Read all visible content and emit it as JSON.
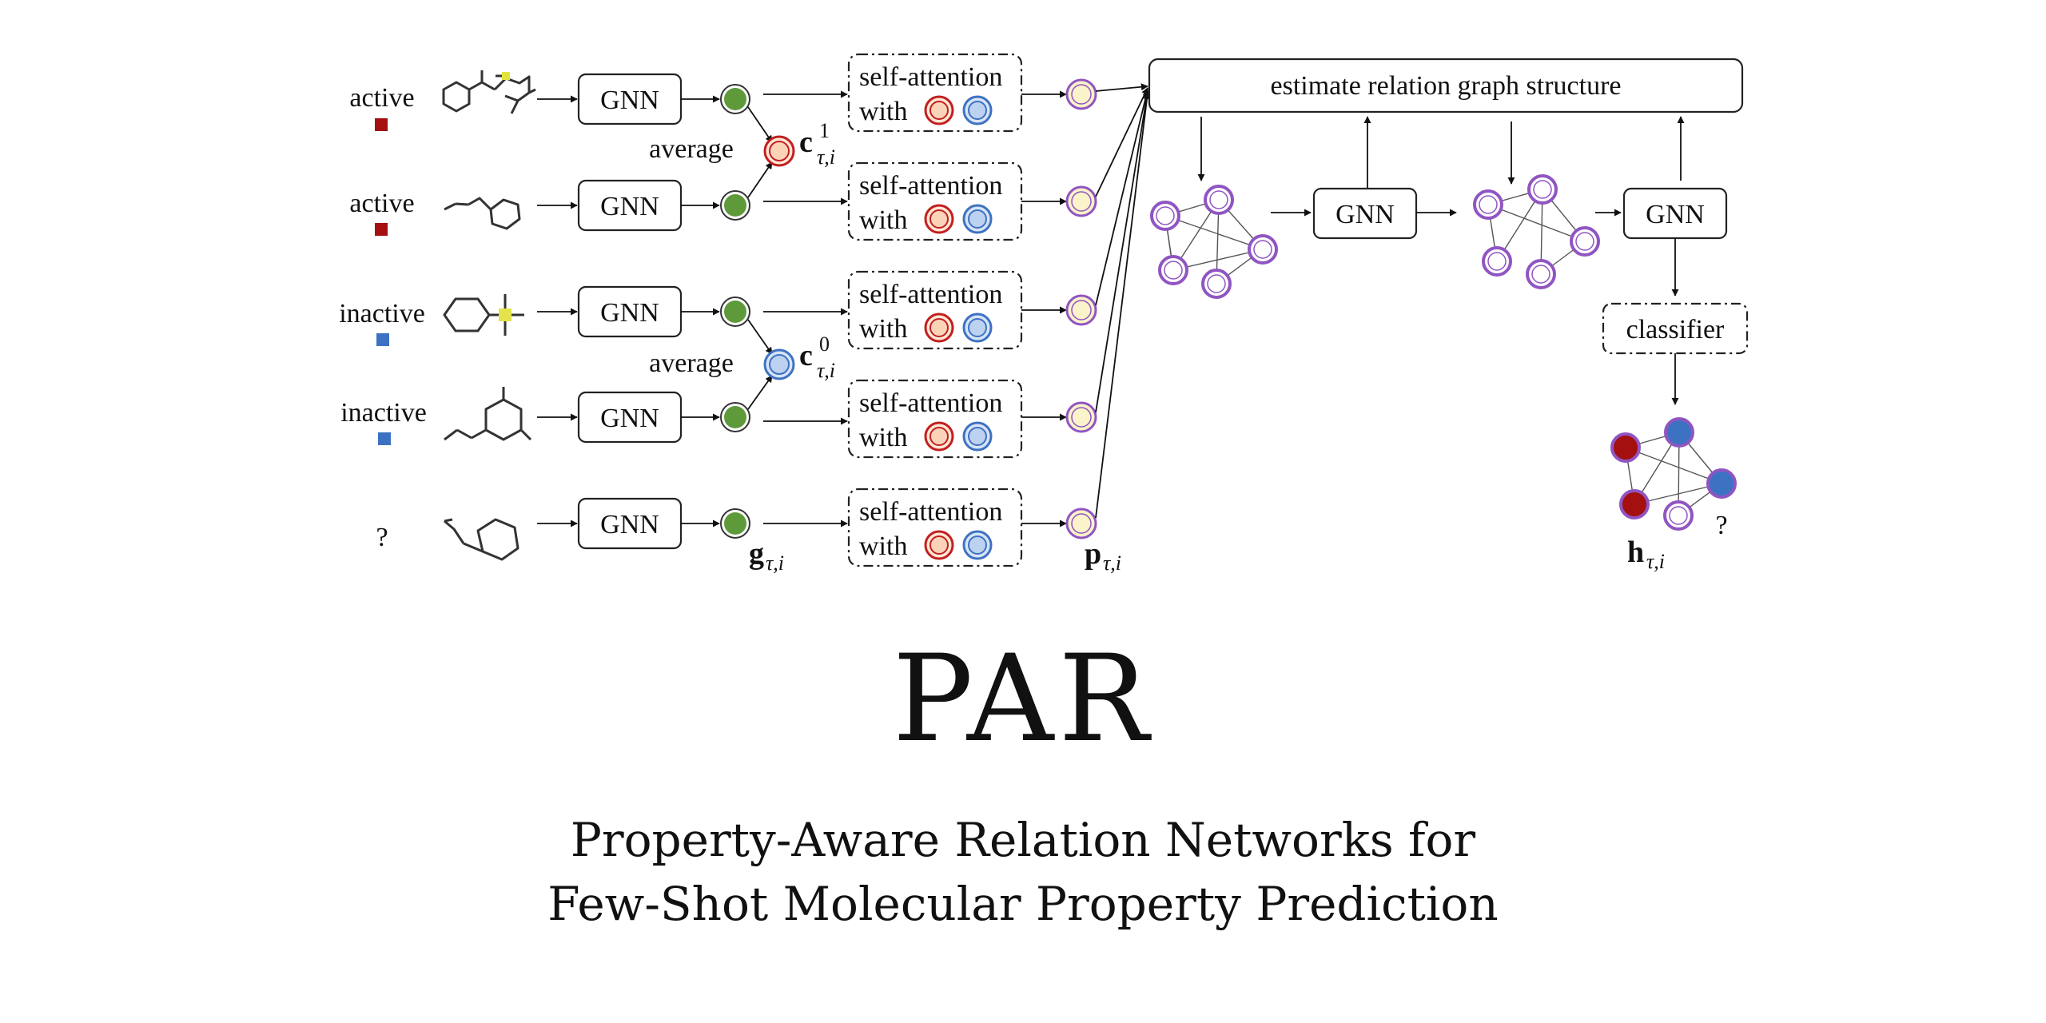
{
  "colors": {
    "active": "#a40f0f",
    "inactive": "#3d72c2",
    "embedding": "#5f9a3a",
    "proto": "#fbf3c9",
    "proto_ring": "#9055c2",
    "query": "#ffffff"
  },
  "rows": [
    {
      "label": "active",
      "gnn": "GNN",
      "class": "active"
    },
    {
      "label": "active",
      "gnn": "GNN",
      "class": "active"
    },
    {
      "label": "inactive",
      "gnn": "GNN",
      "class": "inactive"
    },
    {
      "label": "inactive",
      "gnn": "GNN",
      "class": "inactive"
    },
    {
      "label": "?",
      "gnn": "GNN",
      "class": "query"
    }
  ],
  "average_label": "average",
  "attention": {
    "line1": "self-attention",
    "line2": "with"
  },
  "math": {
    "c1_base": "c",
    "c1_sup": "1",
    "c1_sub": "τ,i",
    "c0_base": "c",
    "c0_sup": "0",
    "c0_sub": "τ,i",
    "g_base": "g",
    "g_sub": "τ,i",
    "p_base": "p",
    "p_sub": "τ,i",
    "h_base": "h",
    "h_sub": "τ,i"
  },
  "relation": {
    "estimate": "estimate relation graph structure",
    "gnn1": "GNN",
    "gnn2": "GNN",
    "classifier": "classifier",
    "query_mark": "?"
  },
  "title": "PAR",
  "subtitle_line1": "Property-Aware Relation Networks for",
  "subtitle_line2": "Few-Shot Molecular Property Prediction"
}
